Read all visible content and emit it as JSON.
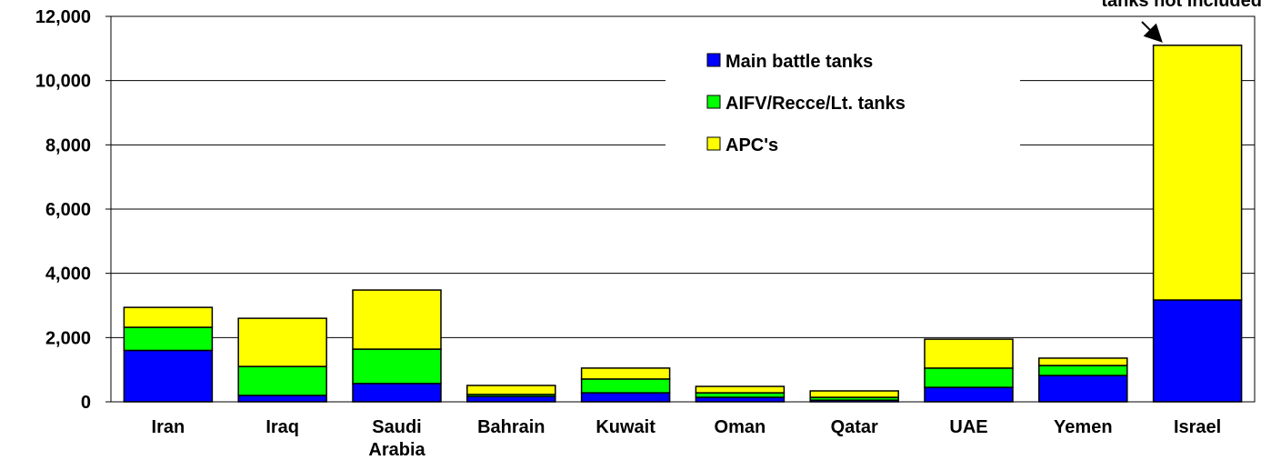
{
  "chart_data": {
    "type": "stacked_bar",
    "categories": [
      "Iran",
      "Iraq",
      "Saudi Arabia",
      "Bahrain",
      "Kuwait",
      "Oman",
      "Qatar",
      "UAE",
      "Yemen",
      "Israel"
    ],
    "series": [
      {
        "name": "Main battle tanks",
        "color": "#0000ff",
        "values": [
          1600,
          200,
          570,
          170,
          280,
          140,
          50,
          450,
          820,
          3170
        ]
      },
      {
        "name": "AIFV/Recce/Lt. tanks",
        "color": "#00ff00",
        "values": [
          720,
          900,
          1070,
          60,
          430,
          140,
          90,
          600,
          310,
          0
        ]
      },
      {
        "name": "APC's",
        "color": "#ffff00",
        "values": [
          620,
          1500,
          1840,
          280,
          340,
          200,
          200,
          900,
          230,
          7930
        ]
      }
    ],
    "ylim": [
      0,
      12000
    ],
    "yticks": [
      {
        "value": 0,
        "label": "0"
      },
      {
        "value": 2000,
        "label": "2,000"
      },
      {
        "value": 4000,
        "label": "4,000"
      },
      {
        "value": 6000,
        "label": "6,000"
      },
      {
        "value": 8000,
        "label": "8,000"
      },
      {
        "value": 10000,
        "label": "10,000"
      },
      {
        "value": 12000,
        "label": "12,000"
      }
    ],
    "grid": true,
    "annotation": "tanks not included"
  }
}
